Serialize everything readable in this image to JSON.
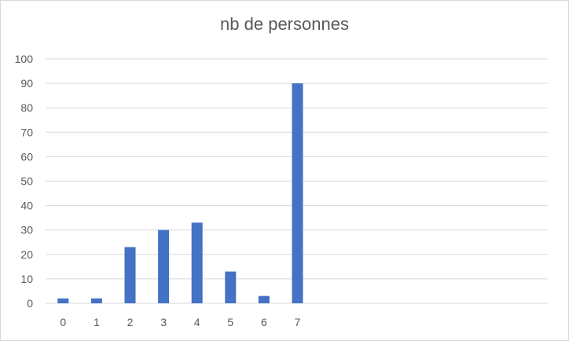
{
  "chart_data": {
    "type": "bar",
    "title": "nb de personnes",
    "categories": [
      "0",
      "1",
      "2",
      "3",
      "4",
      "5",
      "6",
      "7"
    ],
    "values": [
      2,
      2,
      23,
      30,
      33,
      13,
      3,
      90
    ],
    "xlabel": "",
    "ylabel": "",
    "ylim": [
      0,
      100
    ],
    "yticks": [
      "0",
      "10",
      "20",
      "30",
      "40",
      "50",
      "60",
      "70",
      "80",
      "90",
      "100"
    ],
    "grid": true,
    "legend": "none",
    "colors": {
      "bar": "#4472c4",
      "grid": "#d9d9d9",
      "text": "#595959"
    }
  }
}
